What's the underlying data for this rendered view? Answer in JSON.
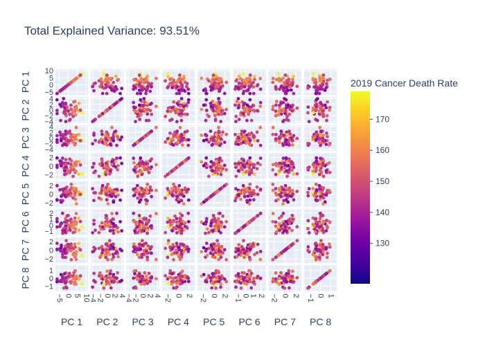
{
  "chart_data": {
    "type": "scatter",
    "subtype": "scatter-matrix",
    "title": "Total Explained Variance: 93.51%",
    "dimensions": [
      "PC 1",
      "PC 2",
      "PC 3",
      "PC 4",
      "PC 5",
      "PC 6",
      "PC 7",
      "PC 8"
    ],
    "ticks": [
      [
        -5,
        0,
        5,
        10
      ],
      [
        -4,
        -2,
        0,
        2,
        4
      ],
      [
        -4,
        -2,
        0,
        2,
        4
      ],
      [
        -2,
        0,
        2
      ],
      [
        -2,
        0,
        2
      ],
      [
        -1,
        0,
        1,
        2
      ],
      [
        -2,
        0,
        2
      ],
      [
        -1,
        0,
        1
      ]
    ],
    "ranges": [
      [
        -7,
        11
      ],
      [
        -4.5,
        4.5
      ],
      [
        -4.5,
        4.5
      ],
      [
        -3,
        3
      ],
      [
        -3,
        3
      ],
      [
        -1.6,
        2.6
      ],
      [
        -3,
        3
      ],
      [
        -1.6,
        1.6
      ]
    ],
    "colorbar": {
      "title": "2019 Cancer Death Rate",
      "min": 117,
      "max": 179,
      "ticks": [
        130,
        140,
        150,
        160,
        170
      ],
      "colorscale": [
        "#0d0887",
        "#46039f",
        "#7201a8",
        "#9c179e",
        "#bd3786",
        "#d8576b",
        "#ed7953",
        "#fb9f3a",
        "#fdca26",
        "#f0f921"
      ]
    },
    "grid": true,
    "n_points": 50
  }
}
